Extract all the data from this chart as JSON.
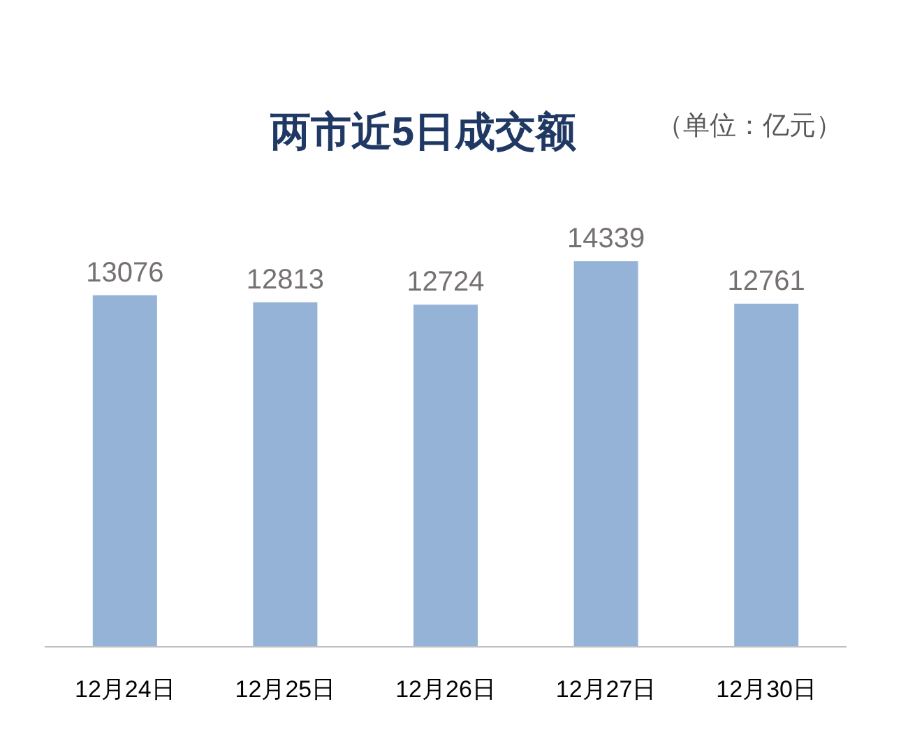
{
  "chart_data": {
    "type": "bar",
    "title": "两市近5日成交额",
    "annotations": [
      "（单位：亿元）"
    ],
    "categories": [
      "12月24日",
      "12月25日",
      "12月26日",
      "12月27日",
      "12月30日"
    ],
    "values": [
      13076,
      12813,
      12724,
      14339,
      12761
    ],
    "color": "#95b3d7",
    "data_labels": true
  }
}
